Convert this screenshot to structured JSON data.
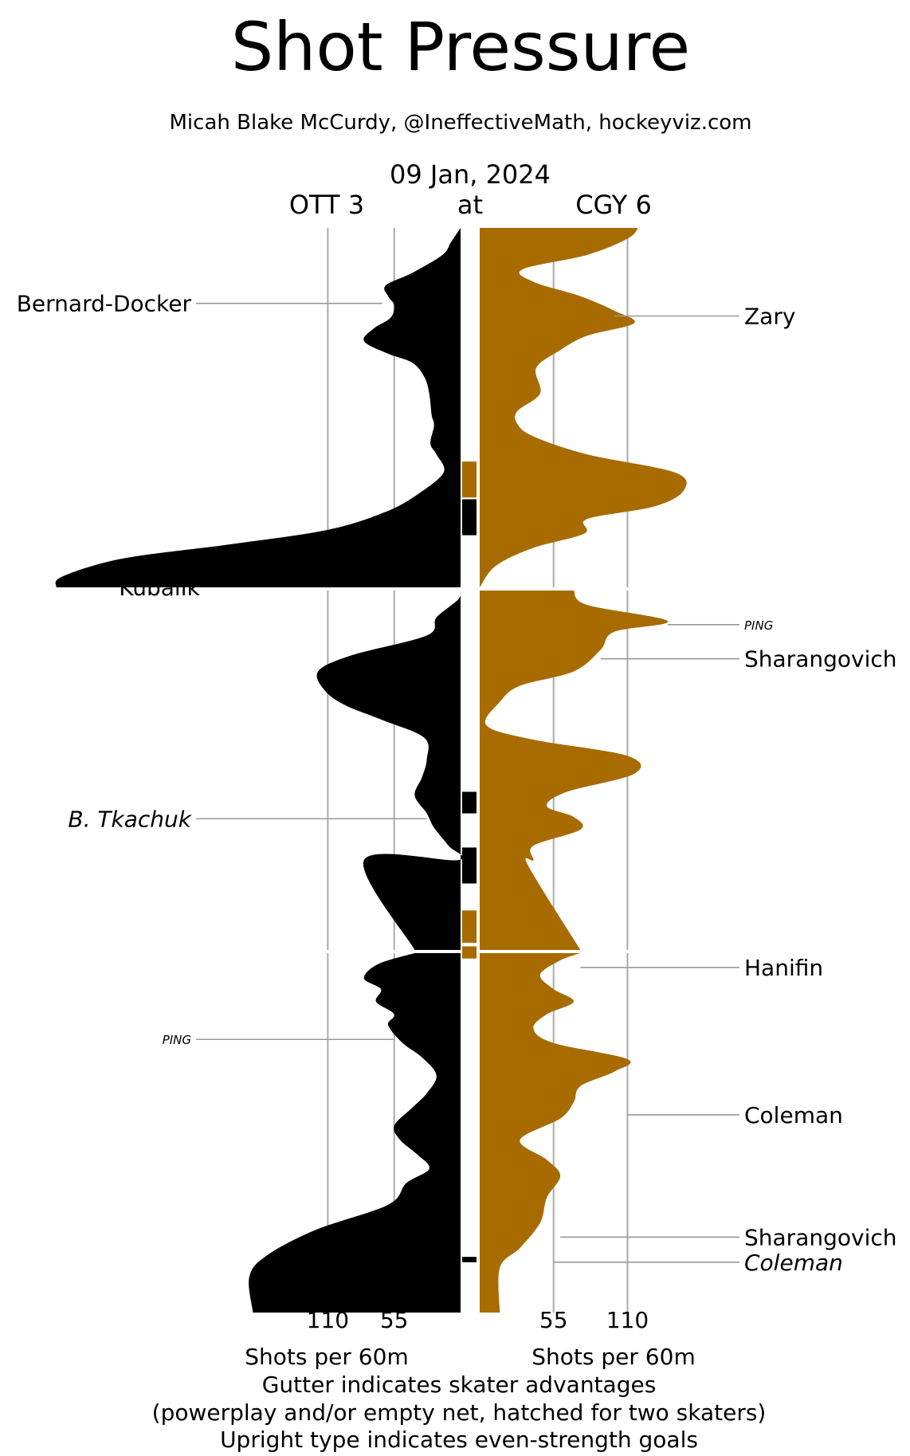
{
  "chart_data": {
    "type": "area",
    "title": "Shot Pressure",
    "subtitle": "Micah Blake McCurdy, @IneffectiveMath, hockeyviz.com",
    "date": "09 Jan, 2024",
    "away": {
      "label": "OTT 3",
      "color": "#000000"
    },
    "at_label": "at",
    "home": {
      "label": "CGY 6",
      "color": "#a86b00"
    },
    "x_unit_label": "Shots per 60m",
    "ticks": [
      55,
      110
    ],
    "x_max": 340,
    "periods": 3,
    "minutes_per_period": 20,
    "series": [
      {
        "team": "OTT",
        "side": "left",
        "points": [
          [
            0,
            0
          ],
          [
            0.8,
            8
          ],
          [
            1.5,
            15
          ],
          [
            2.5,
            40
          ],
          [
            3.2,
            62
          ],
          [
            3.8,
            60
          ],
          [
            4.3,
            55
          ],
          [
            5.0,
            58
          ],
          [
            5.6,
            72
          ],
          [
            6.3,
            80
          ],
          [
            7.0,
            60
          ],
          [
            7.5,
            40
          ],
          [
            8.3,
            30
          ],
          [
            9.2,
            26
          ],
          [
            10.4,
            24
          ],
          [
            11.0,
            22
          ],
          [
            12.0,
            25
          ],
          [
            12.6,
            20
          ],
          [
            13.6,
            14
          ],
          [
            14.8,
            35
          ],
          [
            15.8,
            62
          ],
          [
            16.8,
            110
          ],
          [
            17.6,
            190
          ],
          [
            18.4,
            280
          ],
          [
            19.4,
            330
          ],
          [
            20.0,
            335
          ],
          [
            20.0,
            0
          ],
          [
            20.5,
            2
          ],
          [
            21.5,
            20
          ],
          [
            22.5,
            28
          ],
          [
            23.6,
            90
          ],
          [
            24.5,
            118
          ],
          [
            25.6,
            112
          ],
          [
            26.4,
            95
          ],
          [
            27.2,
            65
          ],
          [
            28.2,
            30
          ],
          [
            29.4,
            28
          ],
          [
            30.4,
            32
          ],
          [
            31.4,
            38
          ],
          [
            32.4,
            28
          ],
          [
            33.2,
            22
          ],
          [
            34.2,
            10
          ],
          [
            35.0,
            2
          ],
          [
            35.0,
            80
          ],
          [
            40.0,
            38
          ],
          [
            40.6,
            68
          ],
          [
            41.4,
            80
          ],
          [
            42.0,
            66
          ],
          [
            42.7,
            70
          ],
          [
            43.4,
            55
          ],
          [
            44.0,
            60
          ],
          [
            45.0,
            48
          ],
          [
            45.8,
            32
          ],
          [
            46.8,
            20
          ],
          [
            47.8,
            28
          ],
          [
            48.6,
            40
          ],
          [
            49.6,
            55
          ],
          [
            50.4,
            50
          ],
          [
            51.2,
            36
          ],
          [
            52.0,
            26
          ],
          [
            52.8,
            45
          ],
          [
            54.0,
            60
          ],
          [
            55.4,
            120
          ],
          [
            56.8,
            160
          ],
          [
            58.0,
            175
          ],
          [
            60.0,
            172
          ]
        ]
      },
      {
        "team": "CGY",
        "side": "right",
        "points": [
          [
            0,
            118
          ],
          [
            0.6,
            110
          ],
          [
            1.5,
            80
          ],
          [
            2.3,
            32
          ],
          [
            3.0,
            40
          ],
          [
            3.8,
            75
          ],
          [
            4.6,
            100
          ],
          [
            5.3,
            115
          ],
          [
            6.0,
            80
          ],
          [
            6.8,
            60
          ],
          [
            7.8,
            42
          ],
          [
            9.2,
            45
          ],
          [
            10.2,
            28
          ],
          [
            10.9,
            28
          ],
          [
            11.6,
            40
          ],
          [
            12.6,
            80
          ],
          [
            13.6,
            145
          ],
          [
            14.6,
            152
          ],
          [
            15.5,
            130
          ],
          [
            16.2,
            80
          ],
          [
            17.0,
            78
          ],
          [
            17.8,
            40
          ],
          [
            18.8,
            12
          ],
          [
            20.0,
            0
          ],
          [
            20.0,
            70
          ],
          [
            20.8,
            80
          ],
          [
            21.7,
            140
          ],
          [
            22.3,
            100
          ],
          [
            23.3,
            90
          ],
          [
            24.5,
            70
          ],
          [
            25.3,
            30
          ],
          [
            26.2,
            15
          ],
          [
            27.5,
            5
          ],
          [
            28.3,
            40
          ],
          [
            29.2,
            110
          ],
          [
            30.2,
            115
          ],
          [
            31.2,
            65
          ],
          [
            32.0,
            50
          ],
          [
            32.6,
            70
          ],
          [
            33.3,
            75
          ],
          [
            34.2,
            40
          ],
          [
            35.0,
            40
          ],
          [
            35.3,
            36
          ],
          [
            40.0,
            75
          ],
          [
            40.4,
            60
          ],
          [
            41.2,
            45
          ],
          [
            42.0,
            55
          ],
          [
            42.7,
            70
          ],
          [
            43.4,
            50
          ],
          [
            44.2,
            40
          ],
          [
            45.0,
            55
          ],
          [
            45.9,
            110
          ],
          [
            46.6,
            100
          ],
          [
            47.4,
            75
          ],
          [
            48.3,
            70
          ],
          [
            49.2,
            60
          ],
          [
            50.4,
            30
          ],
          [
            51.5,
            50
          ],
          [
            52.4,
            60
          ],
          [
            53.6,
            50
          ],
          [
            55.0,
            45
          ],
          [
            56.4,
            30
          ],
          [
            57.5,
            15
          ],
          [
            60.0,
            15
          ]
        ]
      }
    ],
    "gutter_segments": [
      {
        "team": "CGY",
        "start": 13.0,
        "end": 15.0
      },
      {
        "team": "OTT",
        "start": 15.1,
        "end": 17.1
      },
      {
        "team": "OTT",
        "start": 31.2,
        "end": 32.4
      },
      {
        "team": "OTT",
        "start": 34.3,
        "end": 36.3
      },
      {
        "team": "CGY",
        "start": 37.8,
        "end": 39.6
      },
      {
        "team": "CGY",
        "start": 39.8,
        "end": 40.3
      },
      {
        "team": "OTT",
        "start": 56.9,
        "end": 57.2
      }
    ],
    "goals": [
      {
        "team": "OTT",
        "minute": 4.2,
        "x": 65,
        "label": "Bernard-Docker",
        "style": "upright"
      },
      {
        "team": "OTT",
        "minute": 20.0,
        "x": 335,
        "label": "Kubalik",
        "style": "upright"
      },
      {
        "team": "OTT",
        "minute": 32.7,
        "x": 28,
        "label": "B. Tkachuk",
        "style": "italic"
      },
      {
        "team": "OTT",
        "minute": 44.8,
        "x": 55,
        "label": "PING",
        "style": "small-italic"
      },
      {
        "team": "CGY",
        "minute": 4.9,
        "x": 100,
        "label": "Zary",
        "style": "upright"
      },
      {
        "team": "CGY",
        "minute": 21.9,
        "x": 140,
        "label": "PING",
        "style": "small-italic"
      },
      {
        "team": "CGY",
        "minute": 23.8,
        "x": 90,
        "label": "Sharangovich",
        "style": "upright"
      },
      {
        "team": "CGY",
        "minute": 40.8,
        "x": 75,
        "label": "Hanifin",
        "style": "upright"
      },
      {
        "team": "CGY",
        "minute": 49.0,
        "x": 110,
        "label": "Coleman",
        "style": "upright"
      },
      {
        "team": "CGY",
        "minute": 55.8,
        "x": 60,
        "label": "Sharangovich",
        "style": "upright"
      },
      {
        "team": "CGY",
        "minute": 57.2,
        "x": 55,
        "label": "Coleman",
        "style": "italic"
      }
    ],
    "footnotes": [
      "Gutter indicates skater advantages",
      "(powerplay and/or empty net, hatched for two skaters)",
      "Upright type indicates even-strength goals"
    ]
  }
}
